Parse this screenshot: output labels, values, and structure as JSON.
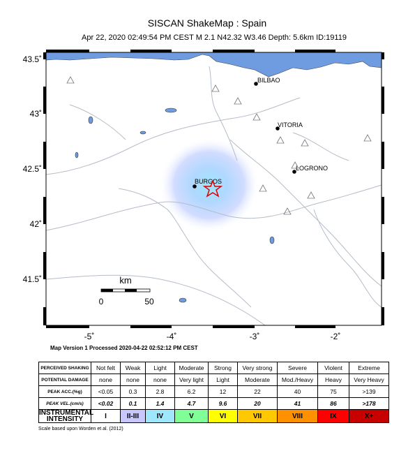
{
  "header": {
    "title": "SISCAN ShakeMap : Spain",
    "subtitle": "Apr 22, 2020 02:49:54 PM CEST   M 2.1   N42.32 W3.46   Depth: 5.6km   ID:19119"
  },
  "map": {
    "lat_labels": [
      "43.5˚",
      "43˚",
      "42.5˚",
      "42˚",
      "41.5˚"
    ],
    "lon_labels": [
      "-5˚",
      "-4˚",
      "-3˚",
      "-2˚"
    ],
    "cities": [
      "BILBAO",
      "VITORIA",
      "LOGRONO",
      "BURGOS"
    ],
    "scale": {
      "unit": "km",
      "start": "0",
      "end": "50"
    }
  },
  "version_note": "Map Version 1 Processed 2020-04-22 02:52:12 PM CEST",
  "table": {
    "rows": [
      [
        "PERCEIVED SHAKING",
        "Not felt",
        "Weak",
        "Light",
        "Moderate",
        "Strong",
        "Very strong",
        "Severe",
        "Violent",
        "Extreme"
      ],
      [
        "POTENTIAL DAMAGE",
        "none",
        "none",
        "none",
        "Very light",
        "Light",
        "Moderate",
        "Mod./Heavy",
        "Heavy",
        "Very Heavy"
      ],
      [
        "PEAK ACC.(%g)",
        "<0.05",
        "0.3",
        "2.8",
        "6.2",
        "12",
        "22",
        "40",
        "75",
        ">139"
      ],
      [
        "PEAK VEL.(cm/s)",
        "<0.02",
        "0.1",
        "1.4",
        "4.7",
        "9.6",
        "20",
        "41",
        "86",
        ">178"
      ],
      [
        "INSTRUMENTAL INTENSITY",
        "I",
        "II-III",
        "IV",
        "V",
        "VI",
        "VII",
        "VIII",
        "IX",
        "X+"
      ]
    ],
    "intensity_colors": [
      "#ffffff",
      "#c8c8ff",
      "#9fe6ff",
      "#80ff96",
      "#ffff00",
      "#ffc800",
      "#ff9100",
      "#ff0000",
      "#c80000"
    ]
  },
  "footnote": "Scale based upon Worden et al. (2012)"
}
